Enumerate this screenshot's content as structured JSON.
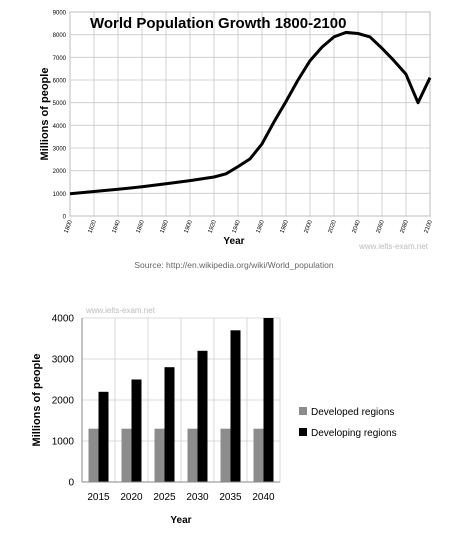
{
  "chart_data": [
    {
      "type": "line",
      "title": "World Population Growth 1800-2100",
      "xlabel": "Year",
      "ylabel": "Millions of people",
      "xlim": [
        1800,
        2100
      ],
      "ylim": [
        0,
        9000
      ],
      "x_ticks": [
        "1800",
        "1820",
        "1840",
        "1860",
        "1880",
        "1900",
        "1920",
        "1940",
        "1960",
        "1980",
        "2000",
        "2020",
        "2040",
        "2060",
        "2080",
        "2100"
      ],
      "y_ticks": [
        "0",
        "1000",
        "2000",
        "3000",
        "4000",
        "5000",
        "6000",
        "7000",
        "8000",
        "9000"
      ],
      "grid": true,
      "series": [
        {
          "x": [
            1800,
            1820,
            1840,
            1860,
            1880,
            1900,
            1920,
            1930,
            1940,
            1950,
            1960,
            1970,
            1980,
            1990,
            2000,
            2010,
            2020,
            2030,
            2040,
            2050,
            2060,
            2070,
            2080,
            2090,
            2100
          ],
          "values": [
            980,
            1080,
            1180,
            1290,
            1420,
            1560,
            1720,
            1860,
            2180,
            2520,
            3180,
            4150,
            5050,
            6000,
            6850,
            7450,
            7900,
            8100,
            8050,
            7900,
            7400,
            6850,
            6250,
            5000,
            6100
          ]
        }
      ],
      "watermark": "www.ielts-exam.net",
      "source": "Source: http://en.wikipedia.org/wiki/World_population"
    },
    {
      "type": "bar",
      "xlabel": "Year",
      "ylabel": "Millions of people",
      "categories": [
        "2015",
        "2020",
        "2025",
        "2030",
        "2035",
        "2040"
      ],
      "ylim": [
        0,
        4000
      ],
      "y_ticks": [
        "0",
        "1000",
        "2000",
        "3000",
        "4000"
      ],
      "grid": true,
      "legend_position": "right",
      "series": [
        {
          "name": "Developed regions",
          "color": "#8c8c8c",
          "values": [
            1300,
            1300,
            1300,
            1300,
            1300,
            1300
          ]
        },
        {
          "name": "Developing regions",
          "color": "#000000",
          "values": [
            2200,
            2500,
            2800,
            3200,
            3700,
            4000
          ]
        }
      ],
      "watermark": "www.ielts-exam.net"
    }
  ]
}
